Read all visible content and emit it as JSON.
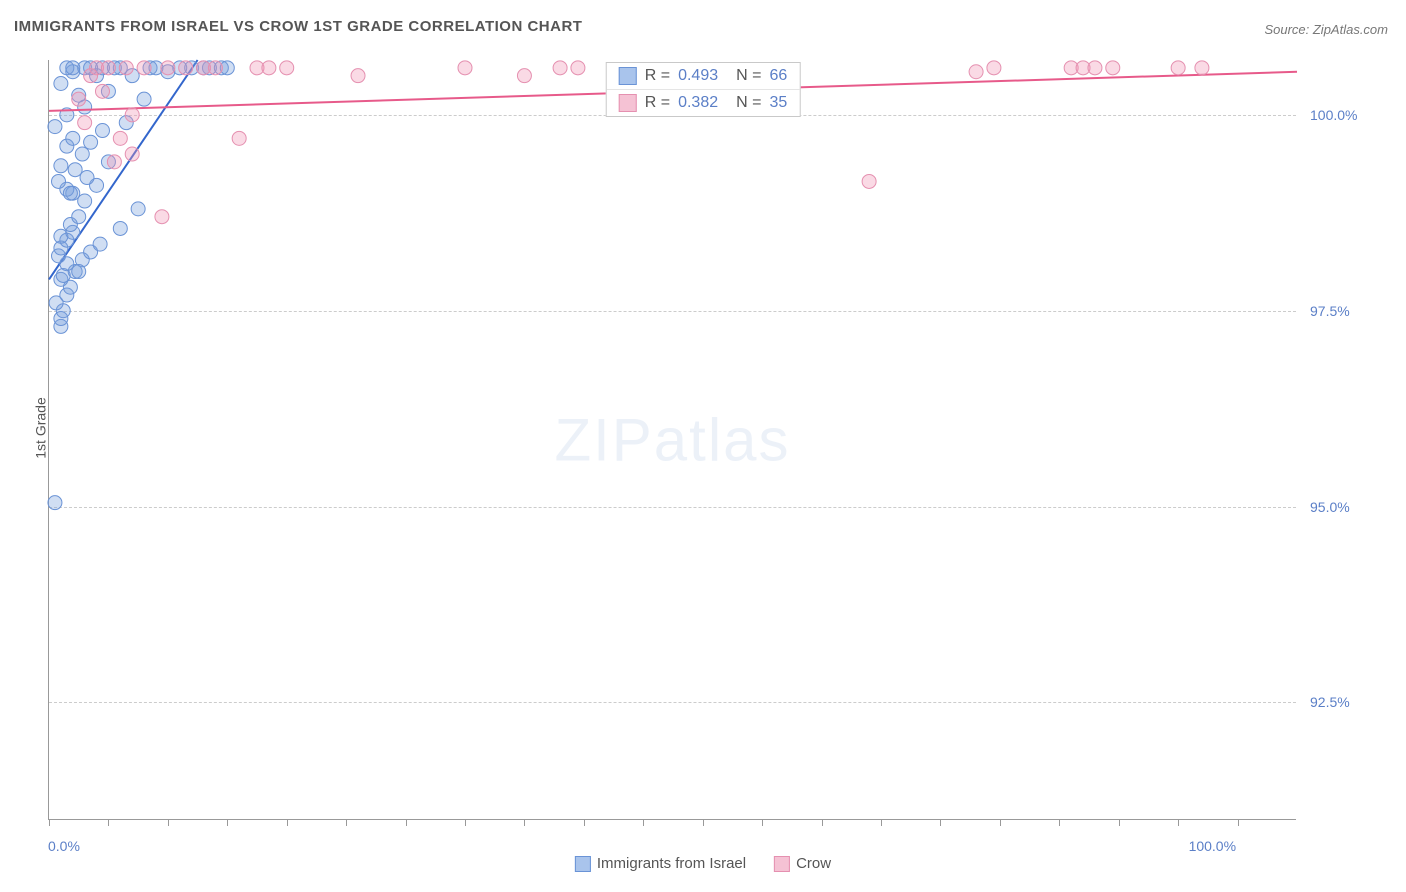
{
  "title": "IMMIGRANTS FROM ISRAEL VS CROW 1ST GRADE CORRELATION CHART",
  "source_prefix": "Source: ",
  "source_name": "ZipAtlas.com",
  "y_axis_title": "1st Grade",
  "watermark_zip": "ZIP",
  "watermark_atlas": "atlas",
  "chart": {
    "type": "scatter",
    "background_color": "#ffffff",
    "grid_color": "#cccccc",
    "axis_color": "#999999",
    "text_color": "#555555",
    "value_color": "#5b7fc7",
    "xlim": [
      0,
      105
    ],
    "ylim": [
      91.0,
      100.7
    ],
    "x_ticks": [
      0,
      5,
      10,
      15,
      20,
      25,
      30,
      35,
      40,
      45,
      50,
      55,
      60,
      65,
      70,
      75,
      80,
      85,
      90,
      95,
      100
    ],
    "x_tick_labels": {
      "0": "0.0%",
      "100": "100.0%"
    },
    "y_gridlines": [
      92.5,
      95.0,
      97.5,
      100.0
    ],
    "y_tick_labels": {
      "92.5": "92.5%",
      "95.0": "95.0%",
      "97.5": "97.5%",
      "100.0": "100.0%"
    },
    "marker_radius": 7,
    "marker_stroke_width": 1,
    "trend_line_width": 2,
    "series": [
      {
        "name": "Immigrants from Israel",
        "fill_color": "rgba(120,160,220,0.35)",
        "stroke_color": "#6a93d6",
        "swatch_fill": "#a9c4ec",
        "swatch_border": "#6a93d6",
        "line_color": "#3366cc",
        "R": "0.493",
        "N": "66",
        "trend": {
          "x1": 0,
          "y1": 97.9,
          "x2": 12.5,
          "y2": 100.7
        },
        "points": [
          [
            0.5,
            95.05
          ],
          [
            1.0,
            97.3
          ],
          [
            1.0,
            97.4
          ],
          [
            1.2,
            97.5
          ],
          [
            0.6,
            97.6
          ],
          [
            1.5,
            97.7
          ],
          [
            1.8,
            97.8
          ],
          [
            1.0,
            97.9
          ],
          [
            1.2,
            97.95
          ],
          [
            2.2,
            98.0
          ],
          [
            1.5,
            98.1
          ],
          [
            2.8,
            98.15
          ],
          [
            0.8,
            98.2
          ],
          [
            3.5,
            98.25
          ],
          [
            1.0,
            98.3
          ],
          [
            4.3,
            98.35
          ],
          [
            1.5,
            98.4
          ],
          [
            1.0,
            98.45
          ],
          [
            2.0,
            98.5
          ],
          [
            6.0,
            98.55
          ],
          [
            1.8,
            98.6
          ],
          [
            2.5,
            98.7
          ],
          [
            7.5,
            98.8
          ],
          [
            3.0,
            98.9
          ],
          [
            2.0,
            99.0
          ],
          [
            1.5,
            99.05
          ],
          [
            4.0,
            99.1
          ],
          [
            0.8,
            99.15
          ],
          [
            3.2,
            99.2
          ],
          [
            2.2,
            99.3
          ],
          [
            1.0,
            99.35
          ],
          [
            5.0,
            99.4
          ],
          [
            2.8,
            99.5
          ],
          [
            1.5,
            99.6
          ],
          [
            3.5,
            99.65
          ],
          [
            2.0,
            99.7
          ],
          [
            4.5,
            99.8
          ],
          [
            0.5,
            99.85
          ],
          [
            6.5,
            99.9
          ],
          [
            1.5,
            100.0
          ],
          [
            3.0,
            100.1
          ],
          [
            8.0,
            100.2
          ],
          [
            2.5,
            100.25
          ],
          [
            5.0,
            100.3
          ],
          [
            1.0,
            100.4
          ],
          [
            4.0,
            100.5
          ],
          [
            7.0,
            100.5
          ],
          [
            2.0,
            100.55
          ],
          [
            10.0,
            100.55
          ],
          [
            3.0,
            100.6
          ],
          [
            6.0,
            100.6
          ],
          [
            1.5,
            100.6
          ],
          [
            5.5,
            100.6
          ],
          [
            12.0,
            100.6
          ],
          [
            2.0,
            100.6
          ],
          [
            8.5,
            100.6
          ],
          [
            4.5,
            100.6
          ],
          [
            13.5,
            100.6
          ],
          [
            3.5,
            100.6
          ],
          [
            14.5,
            100.6
          ],
          [
            11.0,
            100.6
          ],
          [
            9.0,
            100.6
          ],
          [
            15.0,
            100.6
          ],
          [
            13.0,
            100.6
          ],
          [
            2.5,
            98.0
          ],
          [
            1.8,
            99.0
          ]
        ]
      },
      {
        "name": "Crow",
        "fill_color": "rgba(240,150,180,0.35)",
        "stroke_color": "#e590b0",
        "swatch_fill": "#f5c2d4",
        "swatch_border": "#e590b0",
        "line_color": "#e75a8a",
        "R": "0.382",
        "N": "35",
        "trend": {
          "x1": 0,
          "y1": 100.05,
          "x2": 105,
          "y2": 100.55
        },
        "points": [
          [
            9.5,
            98.7
          ],
          [
            5.5,
            99.4
          ],
          [
            6.0,
            99.7
          ],
          [
            16.0,
            99.7
          ],
          [
            7.0,
            100.0
          ],
          [
            26.0,
            100.5
          ],
          [
            35.0,
            100.6
          ],
          [
            40.0,
            100.5
          ],
          [
            69.0,
            99.15
          ],
          [
            78.0,
            100.55
          ],
          [
            79.5,
            100.6
          ],
          [
            86.0,
            100.6
          ],
          [
            87.0,
            100.6
          ],
          [
            88.0,
            100.6
          ],
          [
            89.5,
            100.6
          ],
          [
            95.0,
            100.6
          ],
          [
            97.0,
            100.6
          ],
          [
            4.0,
            100.6
          ],
          [
            5.0,
            100.6
          ],
          [
            6.5,
            100.6
          ],
          [
            8.0,
            100.6
          ],
          [
            10.0,
            100.6
          ],
          [
            11.5,
            100.6
          ],
          [
            13.0,
            100.6
          ],
          [
            14.0,
            100.6
          ],
          [
            17.5,
            100.6
          ],
          [
            18.5,
            100.6
          ],
          [
            20.0,
            100.6
          ],
          [
            3.0,
            99.9
          ],
          [
            4.5,
            100.3
          ],
          [
            7.0,
            99.5
          ],
          [
            43.0,
            100.6
          ],
          [
            44.5,
            100.6
          ],
          [
            3.5,
            100.5
          ],
          [
            2.5,
            100.2
          ]
        ]
      }
    ]
  }
}
